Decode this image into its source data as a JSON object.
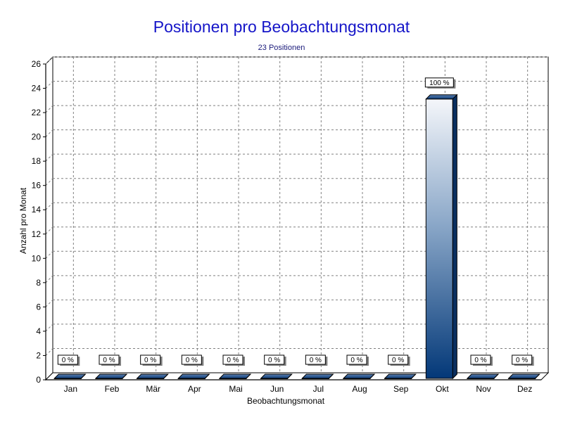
{
  "chart_data": {
    "type": "bar",
    "title": "Positionen pro Beobachtungsmonat",
    "subtitle": "23 Positionen",
    "xlabel": "Beobachtungsmonat",
    "ylabel": "Anzahl pro Monat",
    "categories": [
      "Jan",
      "Feb",
      "Mär",
      "Apr",
      "Mai",
      "Jun",
      "Jul",
      "Aug",
      "Sep",
      "Okt",
      "Nov",
      "Dez"
    ],
    "values": [
      0,
      0,
      0,
      0,
      0,
      0,
      0,
      0,
      0,
      23,
      0,
      0
    ],
    "data_labels": [
      "0 %",
      "0 %",
      "0 %",
      "0 %",
      "0 %",
      "0 %",
      "0 %",
      "0 %",
      "0 %",
      "100 %",
      "0 %",
      "0 %"
    ],
    "ylim": [
      0,
      26
    ],
    "yticks": [
      0,
      2,
      4,
      6,
      8,
      10,
      12,
      14,
      16,
      18,
      20,
      22,
      24,
      26
    ],
    "grid": true,
    "legend": "none",
    "colors": {
      "bar_top": "#f4f6fa",
      "bar_bottom": "#033878",
      "title": "#1515c8",
      "grid": "#808080"
    }
  }
}
